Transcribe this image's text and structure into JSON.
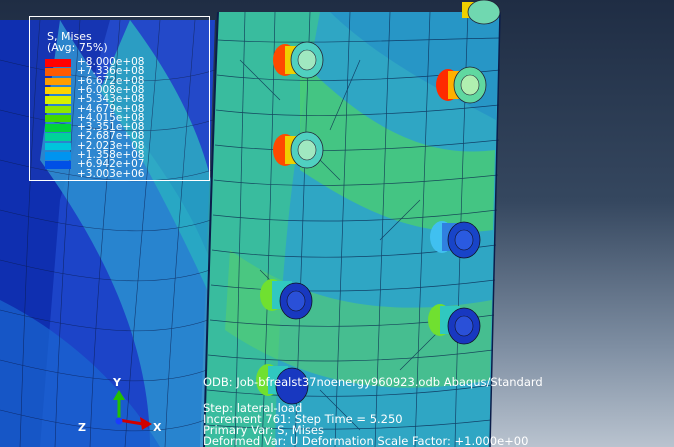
{
  "legend": {
    "title": "S, Mises",
    "subtitle": "(Avg: 75%)",
    "entries": [
      {
        "value": "+8.000e+08",
        "color": "#ff0000"
      },
      {
        "value": "+7.336e+08",
        "color": "#ff5a00"
      },
      {
        "value": "+6.672e+08",
        "color": "#ff9c00"
      },
      {
        "value": "+6.008e+08",
        "color": "#ffd200"
      },
      {
        "value": "+5.343e+08",
        "color": "#d8f000"
      },
      {
        "value": "+4.679e+08",
        "color": "#8ee600"
      },
      {
        "value": "+4.015e+08",
        "color": "#3fd800"
      },
      {
        "value": "+3.351e+08",
        "color": "#00d23c"
      },
      {
        "value": "+2.687e+08",
        "color": "#00d29a"
      },
      {
        "value": "+2.023e+08",
        "color": "#00c4dc"
      },
      {
        "value": "+1.358e+08",
        "color": "#0094f0"
      },
      {
        "value": "+6.942e+07",
        "color": "#0050e6"
      },
      {
        "value": "+3.003e+06",
        "color": "#0010c8"
      }
    ]
  },
  "info": {
    "odb": "ODB: Job-bfrealst37noenergy960923.odb    Abaqus/Standard",
    "step": "Step: lateral-load",
    "increment": "Increment    761: Step Time =     5.250",
    "primary_var": "Primary Var: S, Mises",
    "deformed_var": "Deformed Var: U   Deformation Scale Factor: +1.000e+00"
  },
  "triad": {
    "y": "Y",
    "z": "Z",
    "x": "X"
  }
}
